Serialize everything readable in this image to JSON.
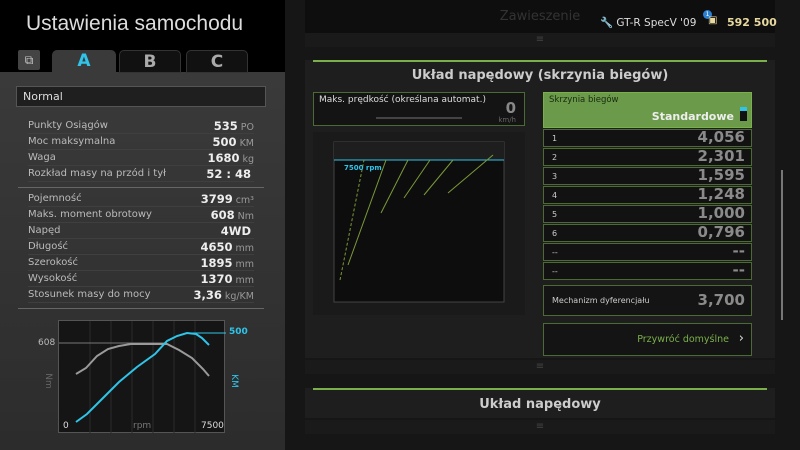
{
  "header": {
    "title": "Ustawienia samochodu",
    "car": "GT-R SpecV '09",
    "credits": "592 500",
    "notification_count": "1"
  },
  "tabs": [
    {
      "label": "A",
      "active": true
    },
    {
      "label": "B"
    },
    {
      "label": "C"
    }
  ],
  "preset": "Normal",
  "stats_group1": [
    {
      "label": "Punkty Osiągów",
      "value": "535",
      "unit": "PO"
    },
    {
      "label": "Moc maksymalna",
      "value": "500",
      "unit": "KM"
    },
    {
      "label": "Waga",
      "value": "1680",
      "unit": "kg"
    },
    {
      "label": "Rozkład masy na przód i tył",
      "value": "52 : 48",
      "unit": ""
    }
  ],
  "stats_group2": [
    {
      "label": "Pojemność",
      "value": "3799",
      "unit": "cm³"
    },
    {
      "label": "Maks. moment obrotowy",
      "value": "608",
      "unit": "Nm"
    },
    {
      "label": "Napęd",
      "value": "4WD",
      "unit": ""
    },
    {
      "label": "Długość",
      "value": "4650",
      "unit": "mm"
    },
    {
      "label": "Szerokość",
      "value": "1895",
      "unit": "mm"
    },
    {
      "label": "Wysokość",
      "value": "1370",
      "unit": "mm"
    },
    {
      "label": "Stosunek masy do mocy",
      "value": "3,36",
      "unit": "kg/KM"
    }
  ],
  "power_chart": {
    "torque_max": "608",
    "power_max": "500",
    "torque_unit": "Nm",
    "power_unit": "KM",
    "x_min": "0",
    "x_label": "rpm",
    "x_max": "7500",
    "torque_color": "#9a9a9a",
    "power_color": "#2fc4e8"
  },
  "sections": {
    "prev": "Zawieszenie",
    "current": "Układ napędowy (skrzynia biegów)",
    "next": "Układ napędowy"
  },
  "max_speed": {
    "label": "Maks. prędkość (określana automat.)",
    "value": "0",
    "unit": "km/h"
  },
  "gear_graph": {
    "redline": "7500 rpm"
  },
  "gearbox": {
    "label": "Skrzynia biegów",
    "type": "Standardowe",
    "gears": [
      {
        "n": "1",
        "v": "4,056"
      },
      {
        "n": "2",
        "v": "2,301"
      },
      {
        "n": "3",
        "v": "1,595"
      },
      {
        "n": "4",
        "v": "1,248"
      },
      {
        "n": "5",
        "v": "1,000"
      },
      {
        "n": "6",
        "v": "0,796"
      },
      {
        "n": "--",
        "v": "--"
      },
      {
        "n": "--",
        "v": "--"
      }
    ]
  },
  "differential": {
    "label": "Mechanizm dyferencjału",
    "value": "3,700"
  },
  "restore_label": "Przywróć domyślne",
  "colors": {
    "accent_green": "#6a9a4a",
    "accent_blue": "#2fc4e8",
    "credits": "#e8d9a0"
  }
}
